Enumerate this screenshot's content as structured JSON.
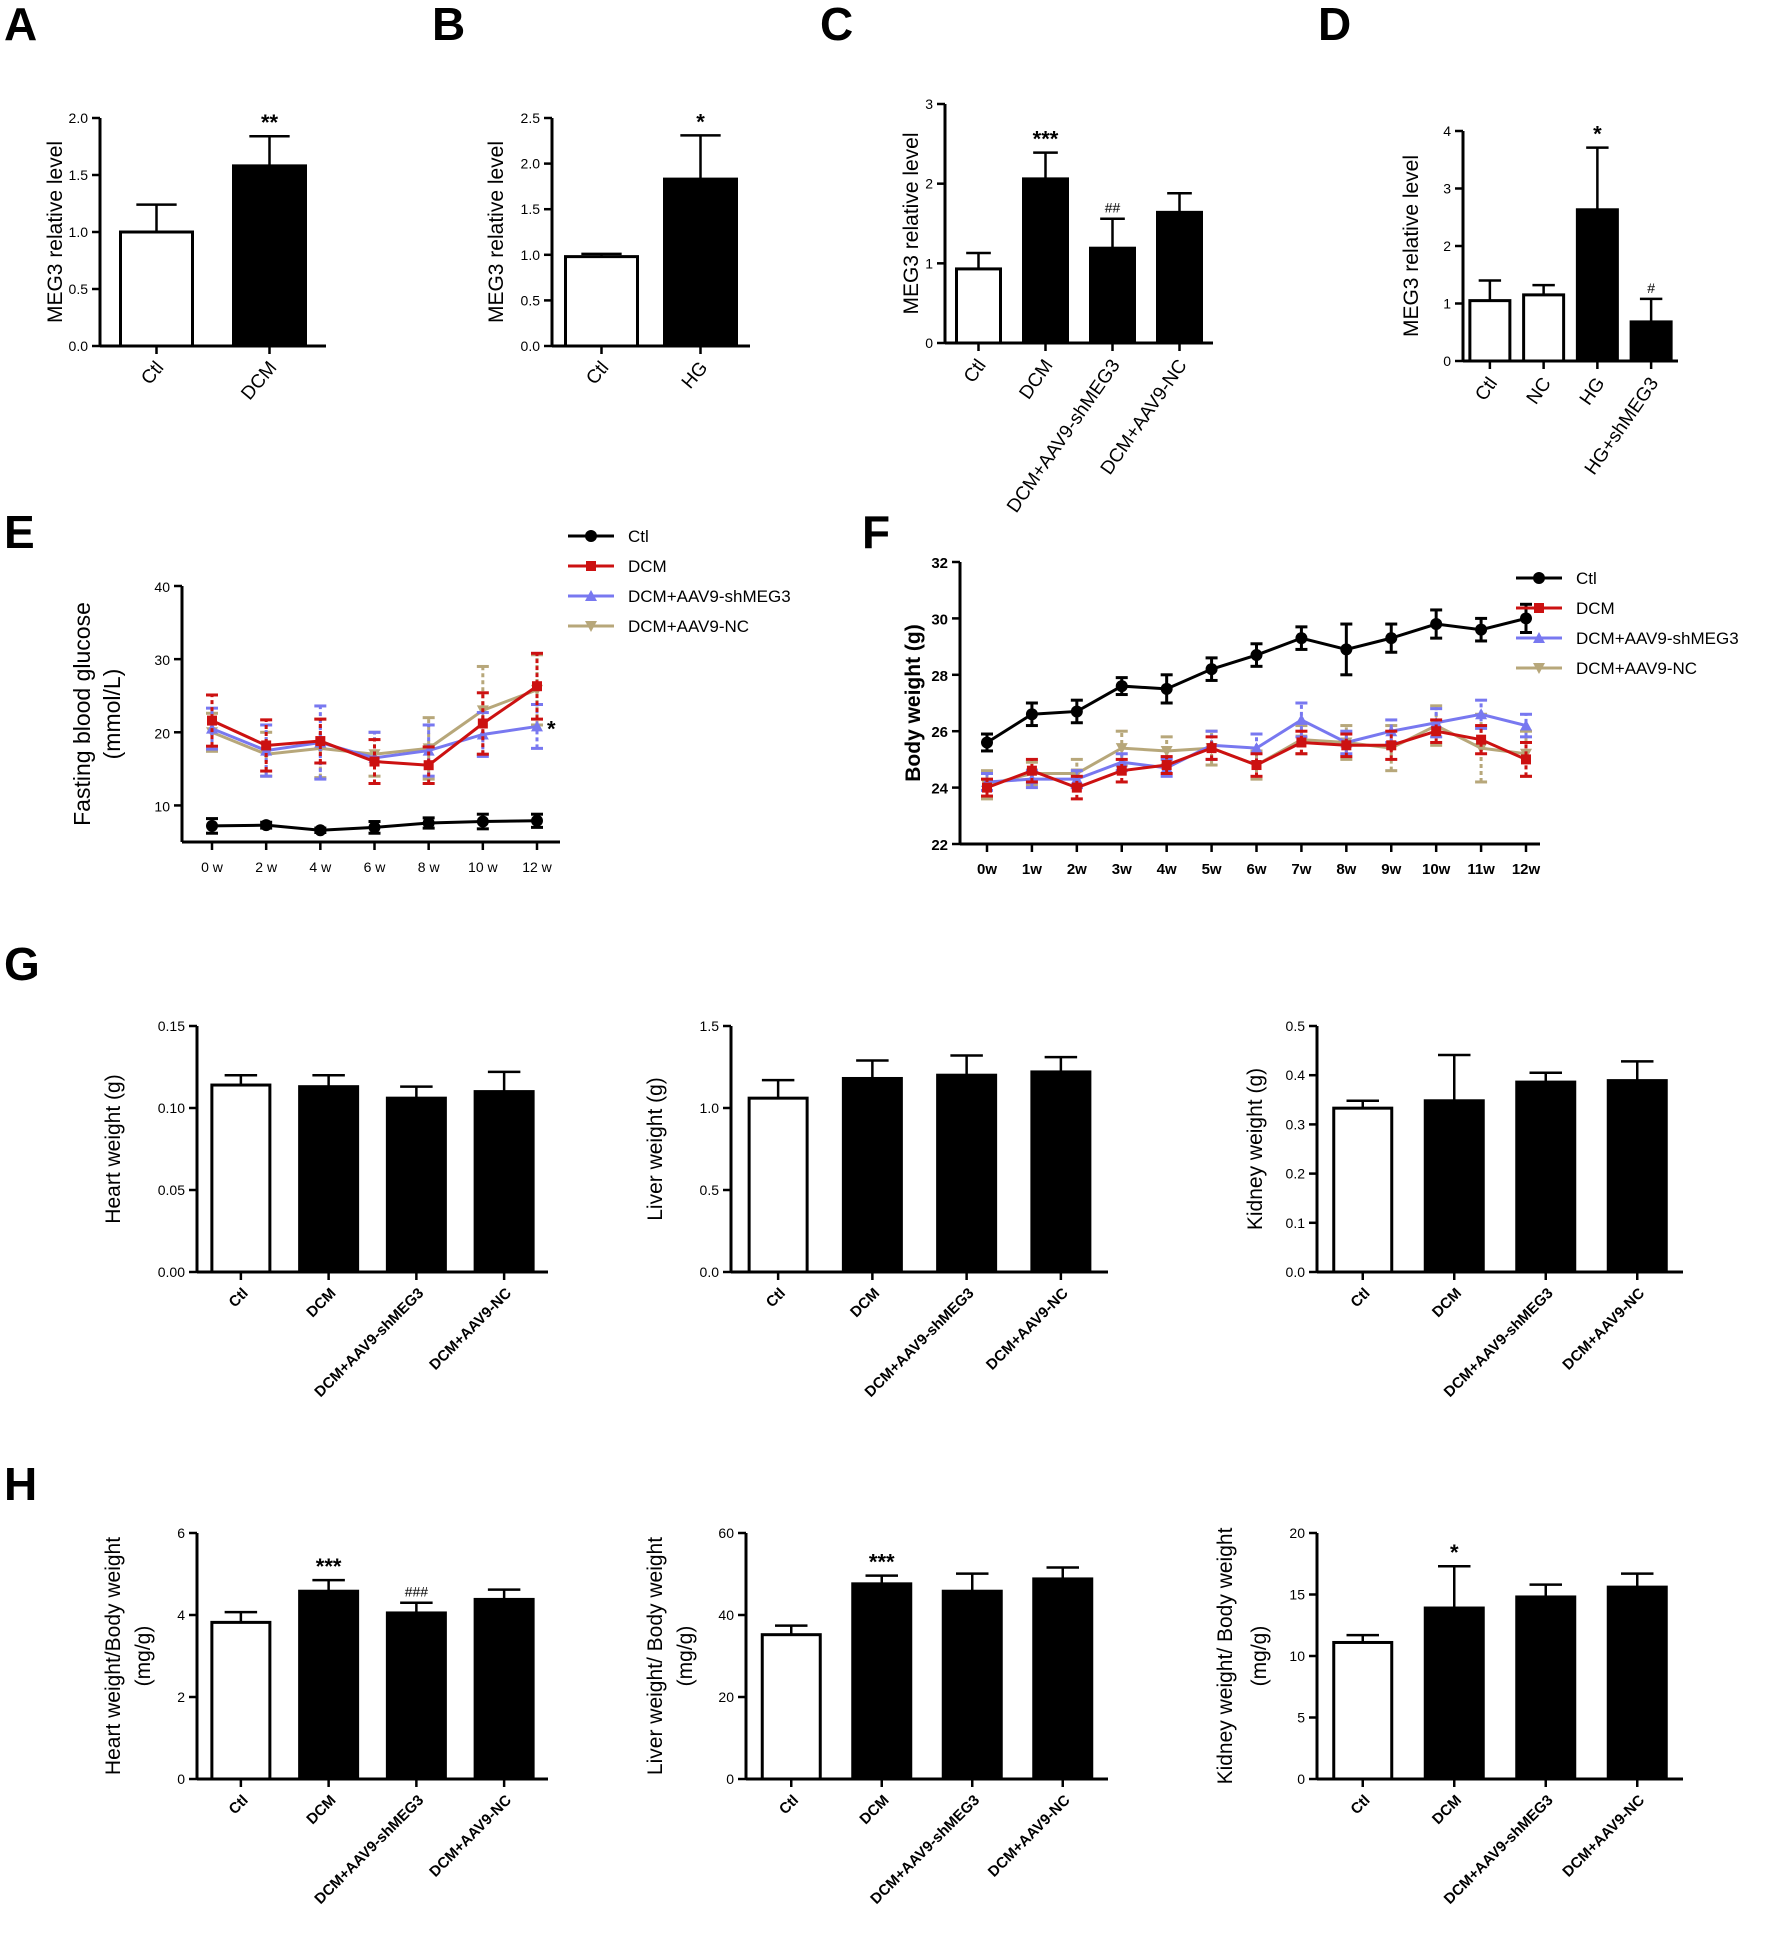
{
  "colors": {
    "Ctl": "#000000",
    "DCM": "#cc1111",
    "DCM+AAV9-shMEG3": "#7878f0",
    "DCM+AAV9-NC": "#b7a77a",
    "bar_fill_black": "#000000",
    "bar_fill_white": "#ffffff"
  },
  "chart_data": [
    {
      "panel": "A",
      "type": "bar",
      "categories": [
        "Ctl",
        "DCM"
      ],
      "values": [
        1.0,
        1.58
      ],
      "errors": [
        0.24,
        0.26
      ],
      "fills": [
        "white",
        "black"
      ],
      "annotations": [
        "",
        "**"
      ],
      "ylabel": "MEG3 relative level",
      "ylim": [
        0,
        2.0
      ],
      "yticks": [
        "0.0",
        "0.5",
        "1.0",
        "1.5",
        "2.0"
      ]
    },
    {
      "panel": "B",
      "type": "bar",
      "categories": [
        "Ctl",
        "HG"
      ],
      "values": [
        0.98,
        1.83
      ],
      "errors": [
        0.03,
        0.48
      ],
      "fills": [
        "white",
        "black"
      ],
      "annotations": [
        "",
        "*"
      ],
      "ylabel": "MEG3 relative level",
      "ylim": [
        0,
        2.5
      ],
      "yticks": [
        "0.0",
        "0.5",
        "1.0",
        "1.5",
        "2.0",
        "2.5"
      ]
    },
    {
      "panel": "C",
      "type": "bar",
      "categories": [
        "Ctl",
        "DCM",
        "DCM+AAV9-shMEG3",
        "DCM+AAV9-NC"
      ],
      "values": [
        0.93,
        2.06,
        1.19,
        1.64
      ],
      "errors": [
        0.2,
        0.33,
        0.37,
        0.24
      ],
      "fills": [
        "white",
        "black",
        "black",
        "black"
      ],
      "annotations": [
        "",
        "***",
        "##",
        ""
      ],
      "ylabel": "MEG3 relative level",
      "ylim": [
        0,
        3
      ],
      "yticks": [
        "0",
        "1",
        "2",
        "3"
      ]
    },
    {
      "panel": "D",
      "type": "bar",
      "categories": [
        "Ctl",
        "NC",
        "HG",
        "HG+shMEG3"
      ],
      "values": [
        1.05,
        1.15,
        2.63,
        0.68
      ],
      "errors": [
        0.35,
        0.17,
        1.08,
        0.4
      ],
      "fills": [
        "white",
        "white",
        "black",
        "black"
      ],
      "annotations": [
        "",
        "",
        "*",
        "#"
      ],
      "ylabel": "MEG3 relative level",
      "ylim": [
        0,
        4
      ],
      "yticks": [
        "0",
        "1",
        "2",
        "3",
        "4"
      ]
    },
    {
      "panel": "E",
      "type": "line",
      "x": [
        "0 w",
        "2 w",
        "4 w",
        "6 w",
        "8 w",
        "10 w",
        "12 w"
      ],
      "ylabel": "Fasting blood glucose (mmol/L)",
      "ylabel_lines": [
        "Fasting blood glucose",
        "(mmol/L)"
      ],
      "ylim": [
        5,
        40
      ],
      "yticks": [
        "10",
        "20",
        "30",
        "40"
      ],
      "legend_position": "top-right",
      "annotation": "*",
      "series": [
        {
          "name": "Ctl",
          "values": [
            7.2,
            7.3,
            6.6,
            7.0,
            7.6,
            7.8,
            7.9
          ],
          "errors": [
            1.0,
            0.4,
            0.3,
            0.8,
            0.7,
            1.0,
            0.9
          ]
        },
        {
          "name": "DCM",
          "values": [
            21.6,
            18.2,
            18.8,
            16.0,
            15.5,
            21.2,
            26.3
          ],
          "errors": [
            3.5,
            3.5,
            3.0,
            3.0,
            2.5,
            4.2,
            4.5
          ]
        },
        {
          "name": "DCM+AAV9-shMEG3",
          "values": [
            20.5,
            17.5,
            18.6,
            16.5,
            17.5,
            19.7,
            20.8
          ],
          "errors": [
            2.8,
            3.5,
            5.0,
            3.5,
            3.5,
            3.0,
            3.0
          ]
        },
        {
          "name": "DCM+AAV9-NC",
          "values": [
            20.0,
            17.0,
            17.8,
            17.0,
            17.8,
            23.0,
            25.8
          ],
          "errors": [
            2.6,
            3.0,
            4.0,
            3.0,
            4.2,
            6.0,
            4.8
          ]
        }
      ]
    },
    {
      "panel": "F",
      "type": "line",
      "x": [
        "0w",
        "1w",
        "2w",
        "3w",
        "4w",
        "5w",
        "6w",
        "7w",
        "8w",
        "9w",
        "10w",
        "11w",
        "12w"
      ],
      "ylabel": "Body weight (g)",
      "ylim": [
        22,
        32
      ],
      "yticks": [
        "22",
        "24",
        "26",
        "28",
        "30",
        "32"
      ],
      "legend_position": "top-right",
      "series": [
        {
          "name": "Ctl",
          "values": [
            25.6,
            26.6,
            26.7,
            27.6,
            27.5,
            28.2,
            28.7,
            29.3,
            28.9,
            29.3,
            29.8,
            29.6,
            30.0
          ],
          "errors": [
            0.3,
            0.4,
            0.4,
            0.3,
            0.5,
            0.4,
            0.4,
            0.4,
            0.9,
            0.5,
            0.5,
            0.4,
            0.5
          ]
        },
        {
          "name": "DCM",
          "values": [
            24.0,
            24.6,
            24.0,
            24.6,
            24.8,
            25.4,
            24.8,
            25.6,
            25.5,
            25.5,
            26.0,
            25.7,
            25.0
          ],
          "errors": [
            0.3,
            0.4,
            0.4,
            0.4,
            0.3,
            0.4,
            0.4,
            0.4,
            0.4,
            0.5,
            0.4,
            0.5,
            0.6
          ]
        },
        {
          "name": "DCM+AAV9-shMEG3",
          "values": [
            24.2,
            24.3,
            24.3,
            24.9,
            24.7,
            25.5,
            25.4,
            26.4,
            25.6,
            26.0,
            26.3,
            26.6,
            26.2
          ],
          "errors": [
            0.3,
            0.3,
            0.3,
            0.3,
            0.3,
            0.5,
            0.5,
            0.6,
            0.4,
            0.4,
            0.5,
            0.5,
            0.4
          ]
        },
        {
          "name": "DCM+AAV9-NC",
          "values": [
            24.1,
            24.5,
            24.5,
            25.4,
            25.3,
            25.4,
            24.8,
            25.7,
            25.6,
            25.4,
            26.2,
            25.4,
            25.2
          ],
          "errors": [
            0.5,
            0.4,
            0.5,
            0.6,
            0.5,
            0.6,
            0.5,
            0.5,
            0.6,
            0.8,
            0.7,
            1.2,
            0.8
          ]
        }
      ]
    },
    {
      "panel": "G",
      "type": "bar",
      "categories": [
        "Ctl",
        "DCM",
        "DCM+AAV9-shMEG3",
        "DCM+AAV9-NC"
      ],
      "values": [
        0.114,
        0.113,
        0.106,
        0.11
      ],
      "errors": [
        0.006,
        0.007,
        0.007,
        0.012
      ],
      "fills": [
        "white",
        "black",
        "black",
        "black"
      ],
      "ylabel": "Heart weight (g)",
      "ylim": [
        0,
        0.15
      ],
      "yticks": [
        "0.00",
        "0.05",
        "0.10",
        "0.15"
      ]
    },
    {
      "panel": "G",
      "type": "bar",
      "categories": [
        "Ctl",
        "DCM",
        "DCM+AAV9-shMEG3",
        "DCM+AAV9-NC"
      ],
      "values": [
        1.06,
        1.18,
        1.2,
        1.22
      ],
      "errors": [
        0.11,
        0.11,
        0.12,
        0.09
      ],
      "fills": [
        "white",
        "black",
        "black",
        "black"
      ],
      "ylabel": "Liver weight (g)",
      "ylim": [
        0,
        1.5
      ],
      "yticks": [
        "0.0",
        "0.5",
        "1.0",
        "1.5"
      ]
    },
    {
      "panel": "G",
      "type": "bar",
      "categories": [
        "Ctl",
        "DCM",
        "DCM+AAV9-shMEG3",
        "DCM+AAV9-NC"
      ],
      "values": [
        0.333,
        0.348,
        0.386,
        0.389
      ],
      "errors": [
        0.015,
        0.093,
        0.019,
        0.039
      ],
      "fills": [
        "white",
        "black",
        "black",
        "black"
      ],
      "ylabel": "Kidney weight (g)",
      "ylim": [
        0,
        0.5
      ],
      "yticks": [
        "0.0",
        "0.1",
        "0.2",
        "0.3",
        "0.4",
        "0.5"
      ]
    },
    {
      "panel": "H",
      "type": "bar",
      "categories": [
        "Ctl",
        "DCM",
        "DCM+AAV9-shMEG3",
        "DCM+AAV9-NC"
      ],
      "values": [
        3.82,
        4.58,
        4.05,
        4.38
      ],
      "errors": [
        0.25,
        0.27,
        0.25,
        0.24
      ],
      "fills": [
        "white",
        "black",
        "black",
        "black"
      ],
      "annotations": [
        "",
        "***",
        "###",
        ""
      ],
      "ylabel": "Heart weight/Body weight (mg/g)",
      "ylabel_lines": [
        "Heart weight/Body weight",
        "(mg/g)"
      ],
      "ylim": [
        0,
        6
      ],
      "yticks": [
        "0",
        "2",
        "4",
        "6"
      ]
    },
    {
      "panel": "H",
      "type": "bar",
      "categories": [
        "Ctl",
        "DCM",
        "DCM+AAV9-shMEG3",
        "DCM+AAV9-NC"
      ],
      "values": [
        35.2,
        47.6,
        45.8,
        48.8
      ],
      "errors": [
        2.2,
        2.0,
        4.3,
        2.8
      ],
      "fills": [
        "white",
        "black",
        "black",
        "black"
      ],
      "annotations": [
        "",
        "***",
        "",
        ""
      ],
      "ylabel": "Liver weight/ Body weight (mg/g)",
      "ylabel_lines": [
        "Liver weight/ Body weight",
        "(mg/g)"
      ],
      "ylim": [
        0,
        60
      ],
      "yticks": [
        "0",
        "20",
        "40",
        "60"
      ]
    },
    {
      "panel": "H",
      "type": "bar",
      "categories": [
        "Ctl",
        "DCM",
        "DCM+AAV9-shMEG3",
        "DCM+AAV9-NC"
      ],
      "values": [
        11.1,
        13.9,
        14.8,
        15.6
      ],
      "errors": [
        0.6,
        3.4,
        1.0,
        1.1
      ],
      "fills": [
        "white",
        "black",
        "black",
        "black"
      ],
      "annotations": [
        "",
        "*",
        "",
        ""
      ],
      "ylabel": "Kidney weight/ Body weight (mg/g)",
      "ylabel_lines": [
        "Kidney weight/ Body weight",
        "(mg/g)"
      ],
      "ylim": [
        0,
        20
      ],
      "yticks": [
        "0",
        "5",
        "10",
        "15",
        "20"
      ]
    }
  ]
}
